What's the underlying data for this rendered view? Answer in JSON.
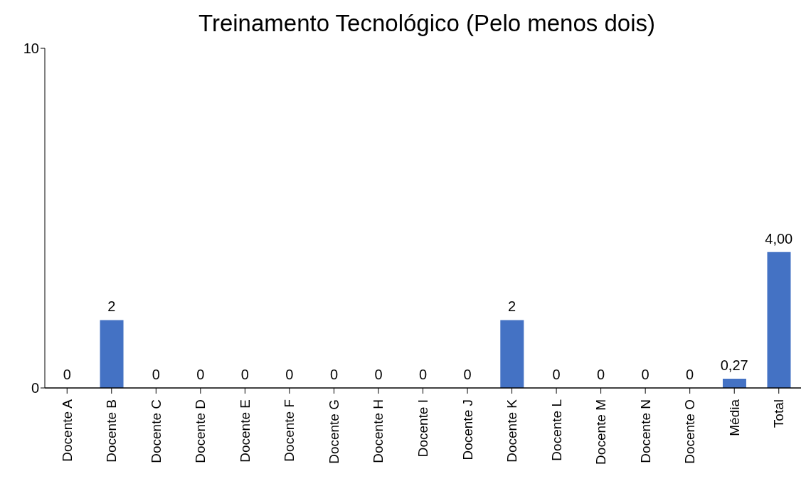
{
  "chart_data": {
    "type": "bar",
    "title": "Treinamento Tecnológico (Pelo menos dois)",
    "categories": [
      "Docente A",
      "Docente B",
      "Docente C",
      "Docente D",
      "Docente E",
      "Docente F",
      "Docente G",
      "Docente H",
      "Docente I",
      "Docente J",
      "Docente K",
      "Docente L",
      "Docente M",
      "Docente N",
      "Docente O",
      "Média",
      "Total"
    ],
    "values": [
      0,
      2,
      0,
      0,
      0,
      0,
      0,
      0,
      0,
      0,
      2,
      0,
      0,
      0,
      0,
      0.27,
      4.0
    ],
    "value_labels": [
      "0",
      "2",
      "0",
      "0",
      "0",
      "0",
      "0",
      "0",
      "0",
      "0",
      "2",
      "0",
      "0",
      "0",
      "0",
      "0,27",
      "4,00"
    ],
    "color": "#4472c4",
    "ylim": [
      0,
      10
    ],
    "yticks": [
      0,
      10
    ],
    "grid": false,
    "legend": false
  }
}
